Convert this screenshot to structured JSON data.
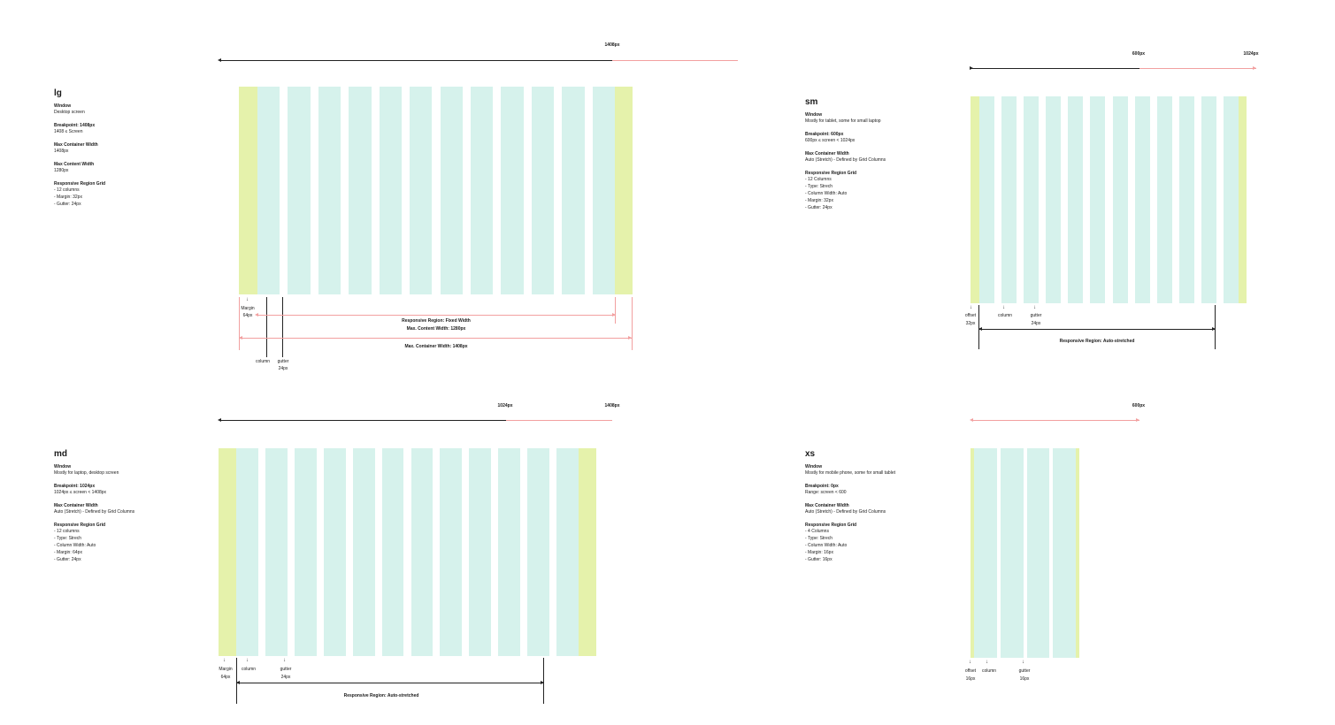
{
  "colors": {
    "column": "#d6f2ec",
    "margin": "#e5f2ab",
    "measure_line": "#f2a0a0",
    "rule": "#222222"
  },
  "lg": {
    "title": "lg",
    "ruler": {
      "end_label": "1408px"
    },
    "info": [
      {
        "label": "Window",
        "lines": [
          "Desktop screen"
        ]
      },
      {
        "label": "Breakpoint: 1408px",
        "lines": [
          "1408 ≤ Screen"
        ]
      },
      {
        "label": "Max Container Width",
        "lines": [
          "1408px"
        ]
      },
      {
        "label": "Max Content Width",
        "lines": [
          "1280px"
        ]
      },
      {
        "label": "Responsive Region Grid",
        "lines": [
          "- 12 columns",
          "- Margin: 32px",
          "- Gutter: 24px"
        ]
      }
    ],
    "annotations": {
      "margin": "Margin",
      "margin_value": "64px",
      "column": "column",
      "gutter": "gutter",
      "gutter_value": "24px",
      "region": "Responsive Region: Fixed Width",
      "content_width": "Max. Content Width: 1280px",
      "container_width": "Max. Container Width: 1408px"
    }
  },
  "sm": {
    "title": "sm",
    "ruler": {
      "mid_label": "600px",
      "end_label": "1024px"
    },
    "info": [
      {
        "label": "Window",
        "lines": [
          "Mostly for tablet, some for small laptop"
        ]
      },
      {
        "label": "Breakpoint: 600px",
        "lines": [
          "600px ≤ screen < 1024px"
        ]
      },
      {
        "label": "Max Container Width",
        "lines": [
          "Auto (Stretch) - Defined by Grid Columns"
        ]
      },
      {
        "label": "Responsive Region Grid",
        "lines": [
          "- 12 Columns",
          "- Type: Strech",
          "- Column Width: Auto",
          "- Margin: 32px",
          "- Gutter: 24px"
        ]
      }
    ],
    "annotations": {
      "offset": "offset",
      "offset_value": "32px",
      "column": "column",
      "gutter": "gutter",
      "gutter_value": "24px",
      "region": "Responsive Region: Auto-stretched"
    }
  },
  "md": {
    "title": "md",
    "ruler": {
      "mid_label": "1024px",
      "end_label": "1408px"
    },
    "info": [
      {
        "label": "Window",
        "lines": [
          "Mostly for laptop, desktop screen"
        ]
      },
      {
        "label": "Breakpoint: 1024px",
        "lines": [
          "1024px ≤ screen < 1408px"
        ]
      },
      {
        "label": "Max Container Width",
        "lines": [
          "Auto (Stretch) - Defined by Grid Columns"
        ]
      },
      {
        "label": "Responsive Region Grid",
        "lines": [
          "- 12 columns",
          "- Type: Strech",
          "- Column Width: Auto",
          "- Margin: 64px",
          "- Gutter: 24px"
        ]
      }
    ],
    "annotations": {
      "margin": "Margin",
      "margin_value": "64px",
      "column": "column",
      "gutter": "gutter",
      "gutter_value": "24px",
      "region": "Responsive Region: Auto-stretched"
    }
  },
  "xs": {
    "title": "xs",
    "ruler": {
      "end_label": "600px"
    },
    "info": [
      {
        "label": "Window",
        "lines": [
          "Mostly for mobile phone, some for small tablet"
        ]
      },
      {
        "label": "Breakpoint: 0px",
        "lines": [
          "Range: screen < 600"
        ]
      },
      {
        "label": "Max Container Width",
        "lines": [
          "Auto (Stretch) - Defined by Grid Columns"
        ]
      },
      {
        "label": "Responsive Region Grid",
        "lines": [
          "- 4 Columns",
          "- Type: Strech",
          "- Column Width: Auto",
          "- Margin: 16px",
          "- Gutter: 16px"
        ]
      }
    ],
    "annotations": {
      "offset": "offset",
      "offset_value": "16px",
      "column": "column",
      "gutter": "gutter",
      "gutter_value": "16px"
    }
  }
}
